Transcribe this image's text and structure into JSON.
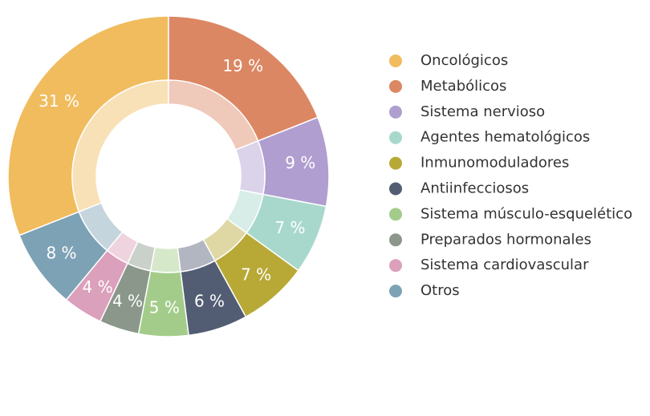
{
  "chart_data": {
    "type": "donut",
    "categories": [
      "Oncológicos",
      "Metabólicos",
      "Sistema nervioso",
      "Agentes hematológicos",
      "Inmunomoduladores",
      "Antiinfecciosos",
      "Sistema músculo-esquelético",
      "Preparados hormonales",
      "Sistema cardiovascular",
      "Otros"
    ],
    "values": [
      31,
      19,
      9,
      7,
      7,
      6,
      5,
      4,
      4,
      8
    ],
    "value_labels": [
      "31 %",
      "19 %",
      "9 %",
      "7 %",
      "7 %",
      "6 %",
      "5 %",
      "4 %",
      "4 %",
      "8 %"
    ],
    "colors": [
      "#f0bc5e",
      "#dc8763",
      "#b09ed0",
      "#a8d8cc",
      "#b8a936",
      "#525d73",
      "#a3cc8a",
      "#8a978a",
      "#dba0bb",
      "#7ea2b5"
    ],
    "legend": "right"
  }
}
